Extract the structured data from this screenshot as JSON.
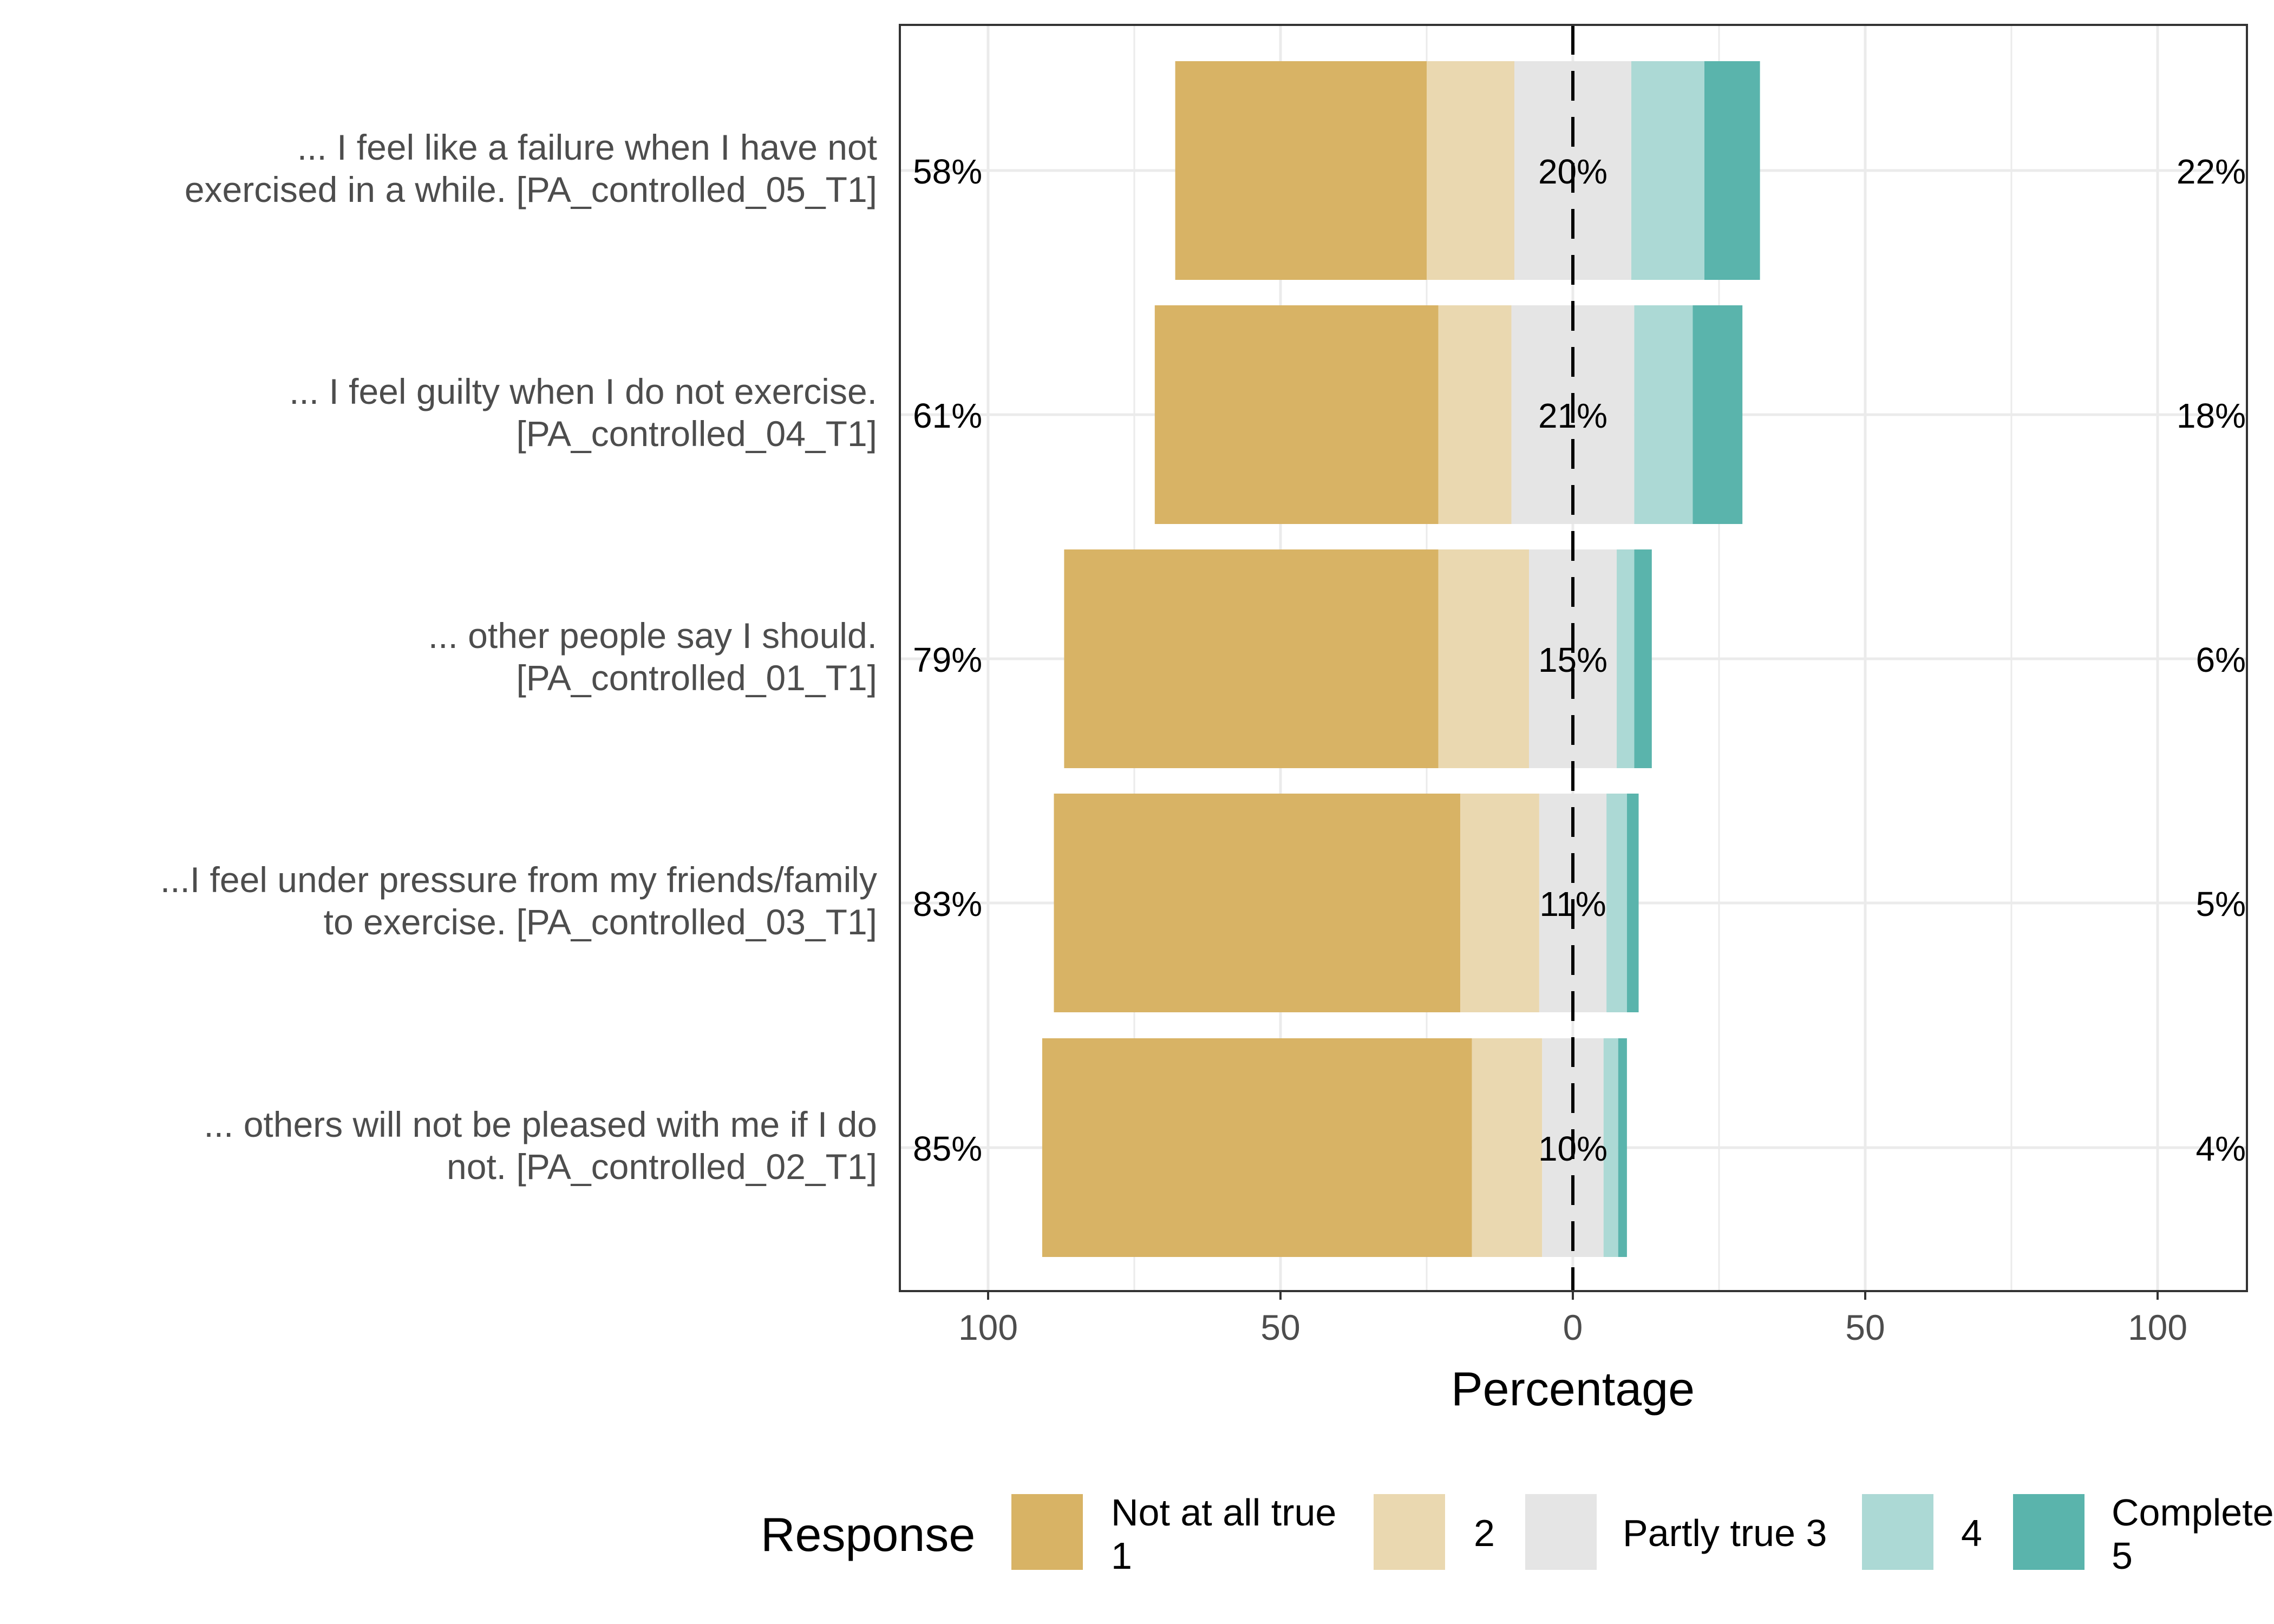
{
  "chart_data": {
    "type": "bar",
    "orientation": "horizontal",
    "layout": "diverging-stacked",
    "xlabel": "Percentage",
    "x_ticks": [
      100,
      50,
      0,
      50,
      100
    ],
    "xlim": [
      -100,
      100
    ],
    "grid": true,
    "legend_position": "bottom",
    "legend_title": "Response",
    "colors": {
      "level_1": "#D8B365",
      "level_2": "#EAD8B0",
      "level_3": "#E5E5E5",
      "level_4": "#ACD9D5",
      "level_5": "#5AB4AC",
      "grid": "#EBEBEB",
      "panel_border": "#333333",
      "axis_text": "#4D4D4D"
    },
    "legend": [
      {
        "label_lines": [
          "Not at all true",
          "1"
        ],
        "color": "#D8B365"
      },
      {
        "label_lines": [
          "2"
        ],
        "color": "#EAD8B0"
      },
      {
        "label_lines": [
          "Partly true 3"
        ],
        "color": "#E5E5E5"
      },
      {
        "label_lines": [
          "4"
        ],
        "color": "#ACD9D5"
      },
      {
        "label_lines": [
          "Complete",
          "5"
        ],
        "color": "#5AB4AC"
      }
    ],
    "categories": [
      {
        "label_lines": [
          "... I feel like a failure when I have not",
          "exercised in a while. [PA_controlled_05_T1]"
        ],
        "values": [
          43,
          15,
          20,
          12.5,
          9.5
        ],
        "left_label": "58%",
        "center_label": "20%",
        "right_label": "22%"
      },
      {
        "label_lines": [
          "... I feel guilty when I do not exercise.",
          "[PA_controlled_04_T1]"
        ],
        "values": [
          48.5,
          12.5,
          21,
          10,
          8.5
        ],
        "left_label": "61%",
        "center_label": "21%",
        "right_label": "18%"
      },
      {
        "label_lines": [
          "... other people say I should.",
          "[PA_controlled_01_T1]"
        ],
        "values": [
          64,
          15.5,
          15,
          3,
          3
        ],
        "left_label": "79%",
        "center_label": "15%",
        "right_label": "6%"
      },
      {
        "label_lines": [
          "...I feel under pressure from my friends/family",
          "to exercise. [PA_controlled_03_T1]"
        ],
        "values": [
          69.5,
          13.5,
          11.5,
          3.5,
          2
        ],
        "left_label": "83%",
        "center_label": "11%",
        "right_label": "5%"
      },
      {
        "label_lines": [
          "... others will not be pleased with me if I do",
          "not. [PA_controlled_02_T1]"
        ],
        "values": [
          73.5,
          12,
          10.5,
          2.5,
          1.5
        ],
        "left_label": "85%",
        "center_label": "10%",
        "right_label": "4%"
      }
    ]
  }
}
